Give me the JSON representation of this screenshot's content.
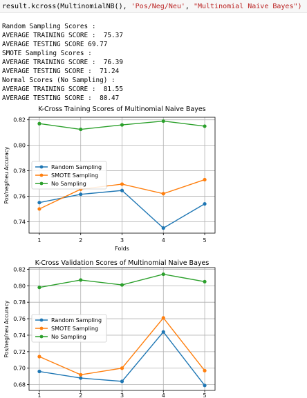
{
  "code": {
    "prefix": "result.kcross(MultinomialNB(), ",
    "arg1": "'Pos/Neg/Neu'",
    "sep": ", ",
    "arg2": "\"Multinomial Naive Bayes\")"
  },
  "output_lines": [
    "Random Sampling Scores :",
    "AVERAGE TRAINING SCORE :  75.37",
    "AVERAGE TESTING SCORE 69.77",
    "SMOTE Sampling Scores :",
    "AVERAGE TRAINING SCORE :  76.39",
    "AVERAGE TESTING SCORE :  71.24",
    "Normal Scores (No Sampling) :",
    "AVERAGE TRAINING SCORE :  81.55",
    "AVERAGE TESTING SCORE :  80.47"
  ],
  "colors": {
    "random": "#1f77b4",
    "smote": "#ff7f0e",
    "none": "#2ca02c"
  },
  "chart_data": [
    {
      "type": "line",
      "title": "K-Cross Training  Scores of Multinomial Naive Bayes",
      "xlabel": "Folds",
      "ylabel": "Pos/neg/neu Accuracy",
      "x": [
        1,
        2,
        3,
        4,
        5
      ],
      "xticks": [
        "1",
        "2",
        "3",
        "4",
        "5"
      ],
      "yticks": [
        "0.74",
        "0.76",
        "0.78",
        "0.80",
        "0.82"
      ],
      "yticks_values": [
        0.74,
        0.76,
        0.78,
        0.8,
        0.82
      ],
      "ylim": [
        0.731,
        0.822
      ],
      "legend_position": "center-left",
      "series": [
        {
          "name": "Random Sampling",
          "values": [
            0.755,
            0.7615,
            0.7645,
            0.735,
            0.754
          ]
        },
        {
          "name": "SMOTE Sampling",
          "values": [
            0.75,
            0.7655,
            0.7695,
            0.762,
            0.773
          ]
        },
        {
          "name": "No Sampling",
          "values": [
            0.817,
            0.8125,
            0.816,
            0.819,
            0.815
          ]
        }
      ]
    },
    {
      "type": "line",
      "title": "K-Cross Validation  Scores of Multinomial Naive Bayes",
      "xlabel": "",
      "ylabel": "Pos/neg/neu Accuracy",
      "x": [
        1,
        2,
        3,
        4,
        5
      ],
      "xticks": [
        "1",
        "2",
        "3",
        "4",
        "5"
      ],
      "yticks": [
        "0.68",
        "0.70",
        "0.72",
        "0.74",
        "0.76",
        "0.78",
        "0.80",
        "0.82"
      ],
      "yticks_values": [
        0.68,
        0.7,
        0.72,
        0.74,
        0.76,
        0.78,
        0.8,
        0.82
      ],
      "ylim": [
        0.673,
        0.822
      ],
      "legend_position": "center-left",
      "series": [
        {
          "name": "Random Sampling",
          "values": [
            0.696,
            0.688,
            0.684,
            0.744,
            0.679
          ]
        },
        {
          "name": "SMOTE Sampling",
          "values": [
            0.714,
            0.692,
            0.7,
            0.761,
            0.697
          ]
        },
        {
          "name": "No Sampling",
          "values": [
            0.798,
            0.807,
            0.801,
            0.814,
            0.805
          ]
        }
      ]
    }
  ]
}
